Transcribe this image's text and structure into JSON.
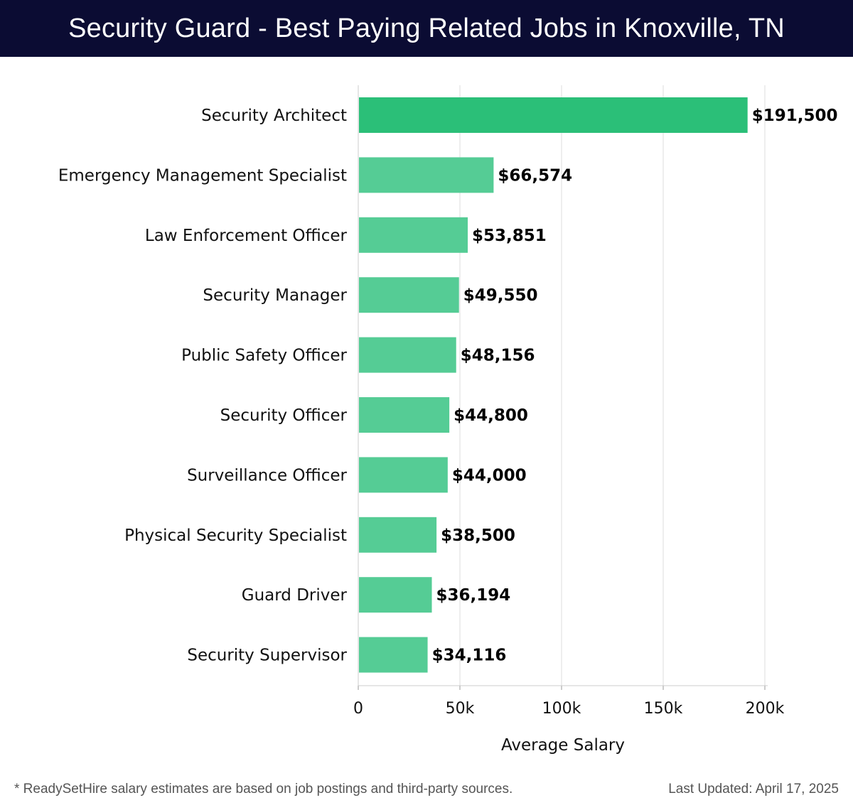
{
  "header": {
    "title": "Security Guard - Best Paying Related Jobs in Knoxville, TN"
  },
  "chart_data": {
    "type": "bar",
    "orientation": "horizontal",
    "categories": [
      "Security Architect",
      "Emergency Management Specialist",
      "Law Enforcement Officer",
      "Security Manager",
      "Public Safety Officer",
      "Security Officer",
      "Surveillance Officer",
      "Physical Security Specialist",
      "Guard Driver",
      "Security Supervisor"
    ],
    "values": [
      191500,
      66574,
      53851,
      49550,
      48156,
      44800,
      44000,
      38500,
      36194,
      34116
    ],
    "value_labels": [
      "$191,500",
      "$66,574",
      "$53,851",
      "$49,550",
      "$48,156",
      "$44,800",
      "$44,000",
      "$38,500",
      "$36,194",
      "$34,116"
    ],
    "xlabel": "Average Salary",
    "ylabel": "",
    "xlim": [
      0,
      200000
    ],
    "xticks": [
      0,
      50000,
      100000,
      150000,
      200000
    ],
    "xtick_labels": [
      "0",
      "50k",
      "100k",
      "150k",
      "200k"
    ],
    "grid": true,
    "colors": {
      "highlight": "#2bbf78",
      "bar": "#55cc95",
      "grid": "#dddddd",
      "axis": "#cccccc"
    }
  },
  "footer": {
    "note": "* ReadySetHire salary estimates are based on job postings and third-party sources.",
    "updated": "Last Updated: April 17, 2025"
  }
}
